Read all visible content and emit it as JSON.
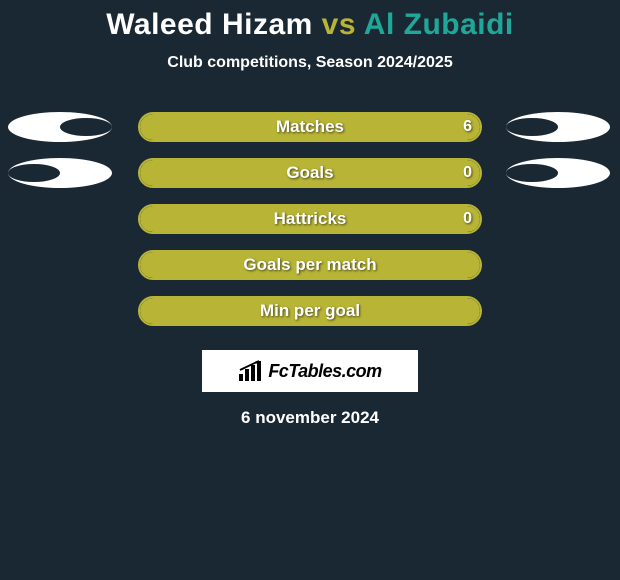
{
  "colors": {
    "background": "#1a2833",
    "player1": "#ffffff",
    "vs": "#b7b436",
    "player2": "#1fa89a",
    "bar_border": "#b7b436",
    "bar_fill": "#b7b436",
    "ellipse_left": "#ffffff",
    "ellipse_right": "#ffffff",
    "text": "#ffffff",
    "logo_bg": "#ffffff",
    "logo_text": "#000000"
  },
  "title": {
    "player1": "Waleed Hizam",
    "vs": "vs",
    "player2": "Al Zubaidi"
  },
  "subtitle": "Club competitions, Season 2024/2025",
  "rows": [
    {
      "label": "Matches",
      "left_value": "",
      "right_value": "6",
      "fill_start_pct": 0,
      "fill_end_pct": 100,
      "show_left_ellipse": true,
      "show_right_ellipse": true,
      "left_ellipse_gap_side": "right",
      "right_ellipse_gap_side": "left"
    },
    {
      "label": "Goals",
      "left_value": "",
      "right_value": "0",
      "fill_start_pct": 0,
      "fill_end_pct": 100,
      "show_left_ellipse": true,
      "show_right_ellipse": true,
      "left_ellipse_gap_side": "left",
      "right_ellipse_gap_side": "left"
    },
    {
      "label": "Hattricks",
      "left_value": "",
      "right_value": "0",
      "fill_start_pct": 0,
      "fill_end_pct": 100,
      "show_left_ellipse": false,
      "show_right_ellipse": false
    },
    {
      "label": "Goals per match",
      "left_value": "",
      "right_value": "",
      "fill_start_pct": 0,
      "fill_end_pct": 100,
      "show_left_ellipse": false,
      "show_right_ellipse": false
    },
    {
      "label": "Min per goal",
      "left_value": "",
      "right_value": "",
      "fill_start_pct": 0,
      "fill_end_pct": 100,
      "show_left_ellipse": false,
      "show_right_ellipse": false
    }
  ],
  "logo": {
    "text": "FcTables.com",
    "icon": "bars-icon"
  },
  "date": "6 november 2024"
}
